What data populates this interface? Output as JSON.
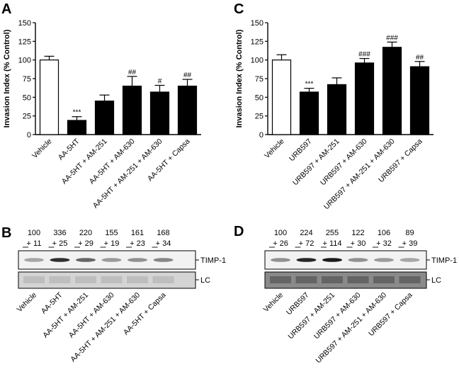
{
  "panels": {
    "a": {
      "letter": "A"
    },
    "b": {
      "letter": "B"
    },
    "c": {
      "letter": "C"
    },
    "d": {
      "letter": "D"
    }
  },
  "colors": {
    "bar_fill": "#000000",
    "vehicle_fill": "#ffffff",
    "axis": "#000000",
    "blot_band": "#1a1a1a",
    "blot_bg": "#e6e6e6"
  },
  "chart_data": [
    {
      "id": "A",
      "type": "bar",
      "ylabel": "Invasion Index (% Control)",
      "xlabel": "",
      "ylim": [
        0,
        150
      ],
      "yticks": [
        0,
        25,
        50,
        75,
        100,
        125,
        150
      ],
      "categories": [
        "Vehicle",
        "AA-5HT",
        "AA-5HT + AM-251",
        "AA-5HT + AM-630",
        "AA-5HT + AM-251 + AM-630",
        "AA-5HT + Capsa"
      ],
      "values": [
        100,
        19,
        45,
        65,
        57,
        65
      ],
      "errors": [
        5,
        5,
        8,
        13,
        9,
        9
      ],
      "annotations": [
        "",
        "***",
        "",
        "##",
        "#",
        "##"
      ],
      "grid": false
    },
    {
      "id": "C",
      "type": "bar",
      "ylabel": "Invasion Index (% Control)",
      "xlabel": "",
      "ylim": [
        0,
        150
      ],
      "yticks": [
        0,
        25,
        50,
        75,
        100,
        125,
        150
      ],
      "categories": [
        "Vehicle",
        "URB597",
        "URB597 + AM-251",
        "URB597 + AM-630",
        "URB597 + AM-251 + AM-630",
        "URB597 + Capsa"
      ],
      "values": [
        100,
        57,
        67,
        96,
        117,
        91
      ],
      "errors": [
        7,
        5,
        9,
        6,
        7,
        7
      ],
      "annotations": [
        "",
        "***",
        "",
        "###",
        "###",
        "##"
      ],
      "grid": false
    }
  ],
  "blots": {
    "b": {
      "means": [
        "100",
        "336",
        "220",
        "155",
        "161",
        "168"
      ],
      "sems": [
        "+ 11",
        "+ 25",
        "+ 29",
        "+ 19",
        "+ 23",
        "+ 34"
      ],
      "band_top_label": "TIMP-1",
      "band_bottom_label": "LC",
      "lane_labels": [
        "Vehicle",
        "AA-5HT",
        "AA-5HT + AM-251",
        "AA-5HT + AM-630",
        "AA-5HT + AM-251 + AM-630",
        "AA-5HT + Capsa"
      ],
      "band_intensity": [
        0.35,
        0.9,
        0.65,
        0.4,
        0.45,
        0.5
      ]
    },
    "d": {
      "means": [
        "100",
        "224",
        "255",
        "122",
        "106",
        "89"
      ],
      "sems": [
        "+ 26",
        "+ 72",
        "+ 114",
        "+ 30",
        "+ 32",
        "+ 39"
      ],
      "band_top_label": "TIMP-1",
      "band_bottom_label": "LC",
      "lane_labels": [
        "Vehicle",
        "URB597",
        "URB597 + AM-251",
        "URB597 + AM-630",
        "URB597 + AM-251 + AM-630",
        "URB597 + Capsa"
      ],
      "band_intensity": [
        0.45,
        0.95,
        1.0,
        0.45,
        0.4,
        0.35
      ]
    }
  }
}
